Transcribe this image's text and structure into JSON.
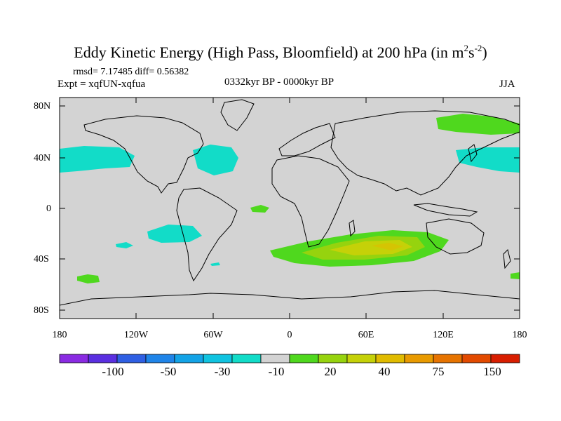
{
  "title": {
    "main": "Eddy Kinetic Energy (High Pass, Bloomfield) at 200 hPa (in m",
    "sup1": "2",
    "mid": "s",
    "sup2": "-2",
    "end": ")"
  },
  "stats_line": "rmsd= 7.17485 diff= 0.56382",
  "experiment_line": "Expt = xqfUN-xqfua",
  "period_line": "0332kyr BP - 0000kyr BP",
  "season_label": "JJA",
  "map": {
    "lat_labels": [
      "80N",
      "40N",
      "0",
      "40S",
      "80S"
    ],
    "lon_labels": [
      "180",
      "120W",
      "60W",
      "0",
      "60E",
      "120E",
      "180"
    ],
    "land_fill": "#d3d3d3"
  },
  "colorbar": {
    "colors": [
      "#8a2be2",
      "#5a2fe0",
      "#2f5fe3",
      "#1f84e8",
      "#13a3e6",
      "#10c3e0",
      "#12dcc8",
      "#d3d3d3",
      "#4fd81e",
      "#96d30e",
      "#c5d108",
      "#e0bb00",
      "#e89a00",
      "#e67300",
      "#e24a00",
      "#d81e00"
    ],
    "labels": [
      "-100",
      "-50",
      "-30",
      "-10",
      "20",
      "40",
      "75",
      "150"
    ]
  }
}
